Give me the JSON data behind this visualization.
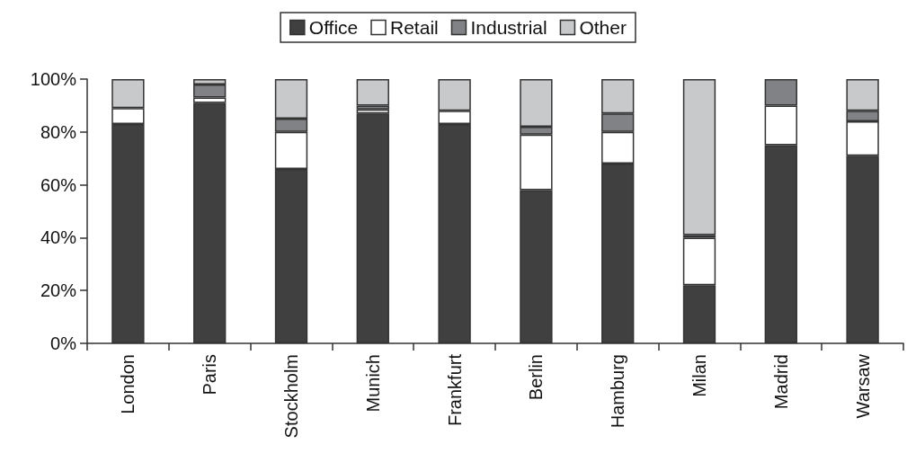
{
  "chart_data": {
    "type": "bar",
    "stacked": true,
    "legend": "top",
    "grid": false,
    "categories": [
      "London",
      "Paris",
      "Stockholm",
      "Munich",
      "Frankfurt",
      "Berlin",
      "Hamburg",
      "Milan",
      "Madrid",
      "Warsaw"
    ],
    "series": [
      {
        "name": "Office",
        "color": "#404040",
        "values": [
          83,
          91,
          66,
          87,
          83,
          58,
          68,
          22,
          75,
          71
        ]
      },
      {
        "name": "Retail",
        "color": "#ffffff",
        "values": [
          6,
          2,
          14,
          1.5,
          5,
          21,
          12,
          18,
          15,
          13
        ]
      },
      {
        "name": "Industrial",
        "color": "#808285",
        "values": [
          0,
          5,
          5,
          1.5,
          0,
          3,
          7,
          1,
          10,
          4
        ]
      },
      {
        "name": "Other",
        "color": "#c8c9cb",
        "values": [
          11,
          2,
          15,
          10,
          12,
          18,
          13,
          59,
          0,
          12
        ]
      }
    ],
    "ylim": [
      0,
      100
    ],
    "yticks": [
      {
        "value": 0,
        "label": "0%"
      },
      {
        "value": 20,
        "label": "20%"
      },
      {
        "value": 40,
        "label": "40%"
      },
      {
        "value": 60,
        "label": "60%"
      },
      {
        "value": 80,
        "label": "80%"
      },
      {
        "value": 100,
        "label": "100%"
      }
    ]
  }
}
